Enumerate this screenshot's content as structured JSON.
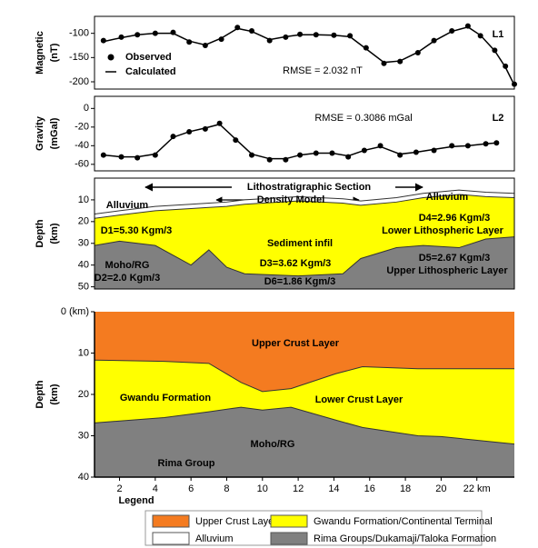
{
  "chart_data": [
    {
      "type": "profile",
      "ylabel": [
        "Magnetic",
        "(nT)"
      ],
      "ylim": [
        -215,
        -65
      ],
      "yticks": [
        -100,
        -150,
        -200
      ],
      "xlim": [
        0.6,
        24.1
      ],
      "x": [
        1.1,
        2.1,
        3.0,
        4.0,
        5.0,
        5.9,
        6.8,
        7.7,
        8.6,
        9.4,
        10.4,
        11.3,
        12.1,
        13.0,
        14.0,
        14.9,
        15.8,
        16.8,
        17.7,
        18.7,
        19.6,
        20.6,
        21.5,
        22.2,
        23.0,
        23.6,
        24.1
      ],
      "series": [
        {
          "name": "Observed",
          "color": "#000000",
          "marker": true,
          "values": [
            -115,
            -108,
            -103,
            -100,
            -98,
            -118,
            -125,
            -112,
            -88,
            -95,
            -115,
            -108,
            -102,
            -103,
            -104,
            -105,
            -130,
            -162,
            -158,
            -140,
            -115,
            -95,
            -85,
            -105,
            -135,
            -168,
            -205
          ]
        },
        {
          "name": "Calculated",
          "color": "#000000",
          "marker": false,
          "values": [
            -117,
            -109,
            -103,
            -100,
            -100,
            -116,
            -124,
            -110,
            -90,
            -96,
            -113,
            -107,
            -103,
            -103,
            -104,
            -107,
            -132,
            -160,
            -157,
            -139,
            -116,
            -96,
            -87,
            -104,
            -136,
            -170,
            -207
          ]
        }
      ],
      "annotations": [
        "RMSE = 2.032 nT",
        "L1"
      ]
    },
    {
      "type": "profile",
      "ylabel": [
        "Gravity",
        "(mGal)"
      ],
      "ylim": [
        -67,
        13
      ],
      "yticks": [
        0,
        -20,
        -40,
        -60
      ],
      "xlim": [
        0.6,
        24.1
      ],
      "x": [
        1.1,
        2.1,
        3.0,
        4.0,
        5.0,
        5.9,
        6.8,
        7.6,
        8.5,
        9.4,
        10.4,
        11.3,
        12.1,
        13.0,
        13.9,
        14.8,
        15.7,
        16.6,
        17.7,
        18.6,
        19.6,
        20.6,
        21.5,
        22.5,
        23.1
      ],
      "series": [
        {
          "color": "#000000",
          "marker": true,
          "values": [
            -50,
            -52,
            -53,
            -50,
            -30,
            -25,
            -22,
            -16,
            -34,
            -50,
            -55,
            -55,
            -50,
            -48,
            -48,
            -52,
            -45,
            -40,
            -50,
            -47,
            -45,
            -40,
            -40,
            -38,
            -37
          ]
        },
        {
          "color": "#000000",
          "marker": false,
          "values": [
            -50,
            -52,
            -52,
            -49,
            -31,
            -25,
            -21,
            -17,
            -33,
            -49,
            -54,
            -54,
            -50,
            -48,
            -48,
            -51,
            -45,
            -41,
            -49,
            -47,
            -44,
            -41,
            -40,
            -38,
            -37
          ]
        }
      ],
      "annotations": [
        "RMSE = 0.3086 mGal",
        "L2"
      ]
    },
    {
      "type": "section",
      "ylabel": [
        "Depth",
        "(km)"
      ],
      "ylim": [
        0,
        51
      ],
      "inverted": true,
      "yticks": [
        10,
        20,
        30,
        40,
        50
      ],
      "xlim": [
        0.6,
        24.1
      ],
      "x": [
        0.6,
        2,
        4,
        6,
        7,
        8,
        9,
        12,
        14.5,
        15.5,
        17.5,
        19,
        21,
        22.5,
        24.1
      ],
      "layers": [
        {
          "color": "#ffffff",
          "top": [
            16.5,
            15,
            13,
            12,
            11.5,
            11,
            10,
            8.5,
            9.5,
            10.5,
            9,
            7,
            5.5,
            6.5,
            7
          ]
        },
        {
          "color": "#ffff00",
          "top": [
            18.5,
            17,
            15,
            14,
            13.5,
            13,
            12,
            10.5,
            11.5,
            12.5,
            11,
            9,
            7.5,
            8.5,
            9
          ]
        },
        {
          "color": "#808080",
          "top": [
            31,
            29,
            31,
            40,
            33,
            41,
            44,
            45,
            44,
            37,
            32,
            31,
            32,
            28,
            27
          ]
        }
      ],
      "annotations": [
        "Lithostratigraphic Section",
        "Density Model",
        "Alluvium",
        "Alluvium",
        "D1=5.30 Kgm/3",
        "Sediment infil",
        "D4=2.96 Kgm/3",
        "Lower Lithospheric Layer",
        "D5=2.67 Kgm/3",
        "Upper Lithospheric Layer",
        "D3=3.62 Kgm/3",
        "Moho/RG",
        "D2=2.0 Kgm/3",
        "D6=1.86 Kgm/3"
      ]
    },
    {
      "type": "section",
      "ylabel": [
        "Depth",
        "(km)"
      ],
      "ylim": [
        0,
        40
      ],
      "inverted": true,
      "yticks": [
        {
          "value": 0,
          "label": "0 (km)"
        },
        10,
        20,
        30,
        40
      ],
      "xlim": [
        0.6,
        24.1
      ],
      "xticks": [
        2,
        4,
        6,
        8,
        10,
        12,
        14,
        16,
        18,
        20,
        {
          "value": 22,
          "label": "22 km"
        }
      ],
      "x": [
        0.6,
        4.5,
        7,
        8.8,
        10,
        11.6,
        14.1,
        15.6,
        18.7,
        20,
        24.1
      ],
      "layers": [
        {
          "color": "#f47b20"
        },
        {
          "color": "#ffff00",
          "top": [
            11.7,
            12,
            12.5,
            17.1,
            19.3,
            18.6,
            15,
            13.3,
            13.8,
            13.8,
            13.8
          ]
        },
        {
          "color": "#808080",
          "top": [
            26.9,
            25.6,
            24.2,
            23.1,
            23.8,
            23.1,
            26.2,
            28,
            30,
            30.2,
            32
          ]
        }
      ],
      "annotations": [
        "Upper Crust Layer",
        "Gwandu Formation",
        "Lower Crust Layer",
        "Moho/RG",
        "Rima Group"
      ]
    }
  ],
  "legend": {
    "title": "Legend",
    "items": [
      {
        "label": "Upper Crust Layer",
        "color": "#f47b20"
      },
      {
        "label": "Gwandu Formation/Continental Terminal",
        "color": "#ffff00"
      },
      {
        "label": "Alluvium",
        "color": "#ffffff"
      },
      {
        "label": "Rima Groups/Dukamaji/Taloka Formation",
        "color": "#808080"
      }
    ]
  }
}
